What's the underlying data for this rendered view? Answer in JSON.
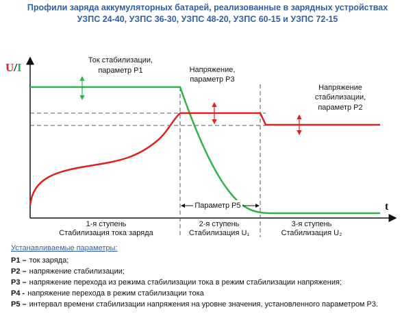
{
  "header": {
    "title": [
      "Профили заряда аккумуляторных батарей, реализованные в зарядных устройствах",
      "УЗПС 24-40, УЗПС 36-30, УЗПС 48-20, УЗПС 60-15 и УЗПС 72-15"
    ]
  },
  "axes": {
    "y_label": [
      "U",
      "/",
      "I"
    ],
    "x_label": "t"
  },
  "annotations": {
    "p1": [
      "Ток стабилизации,",
      "параметр P1"
    ],
    "p3": [
      "Напряжение,",
      "параметр P3"
    ],
    "p2": [
      "Напряжение",
      "стабилизации,",
      "параметр P2"
    ],
    "p5": "Параметр P5"
  },
  "stages": [
    [
      "1-я ступень",
      "Стабилизация тока заряда"
    ],
    [
      "2-я ступень",
      "Стабилизация U₁"
    ],
    [
      "3-я ступень",
      "Стабилизация U₂"
    ]
  ],
  "params": {
    "heading": "Устанавливаемые параметры:",
    "items": [
      {
        "key": "P1 –",
        "text": "ток заряда;"
      },
      {
        "key": "P2 –",
        "text": "напряжение стабилизации;"
      },
      {
        "key": "P3 –",
        "text": "напряжение перехода из режима стабилизации тока в режим стабилизации напряжения;"
      },
      {
        "key": "P4 -",
        "text": "напряжение перехода в  режим стабилизации тока"
      },
      {
        "key": "P5 –",
        "text": "интервал времени стабилизации напряжения на уровне значения, установленного параметром P3."
      }
    ]
  }
}
